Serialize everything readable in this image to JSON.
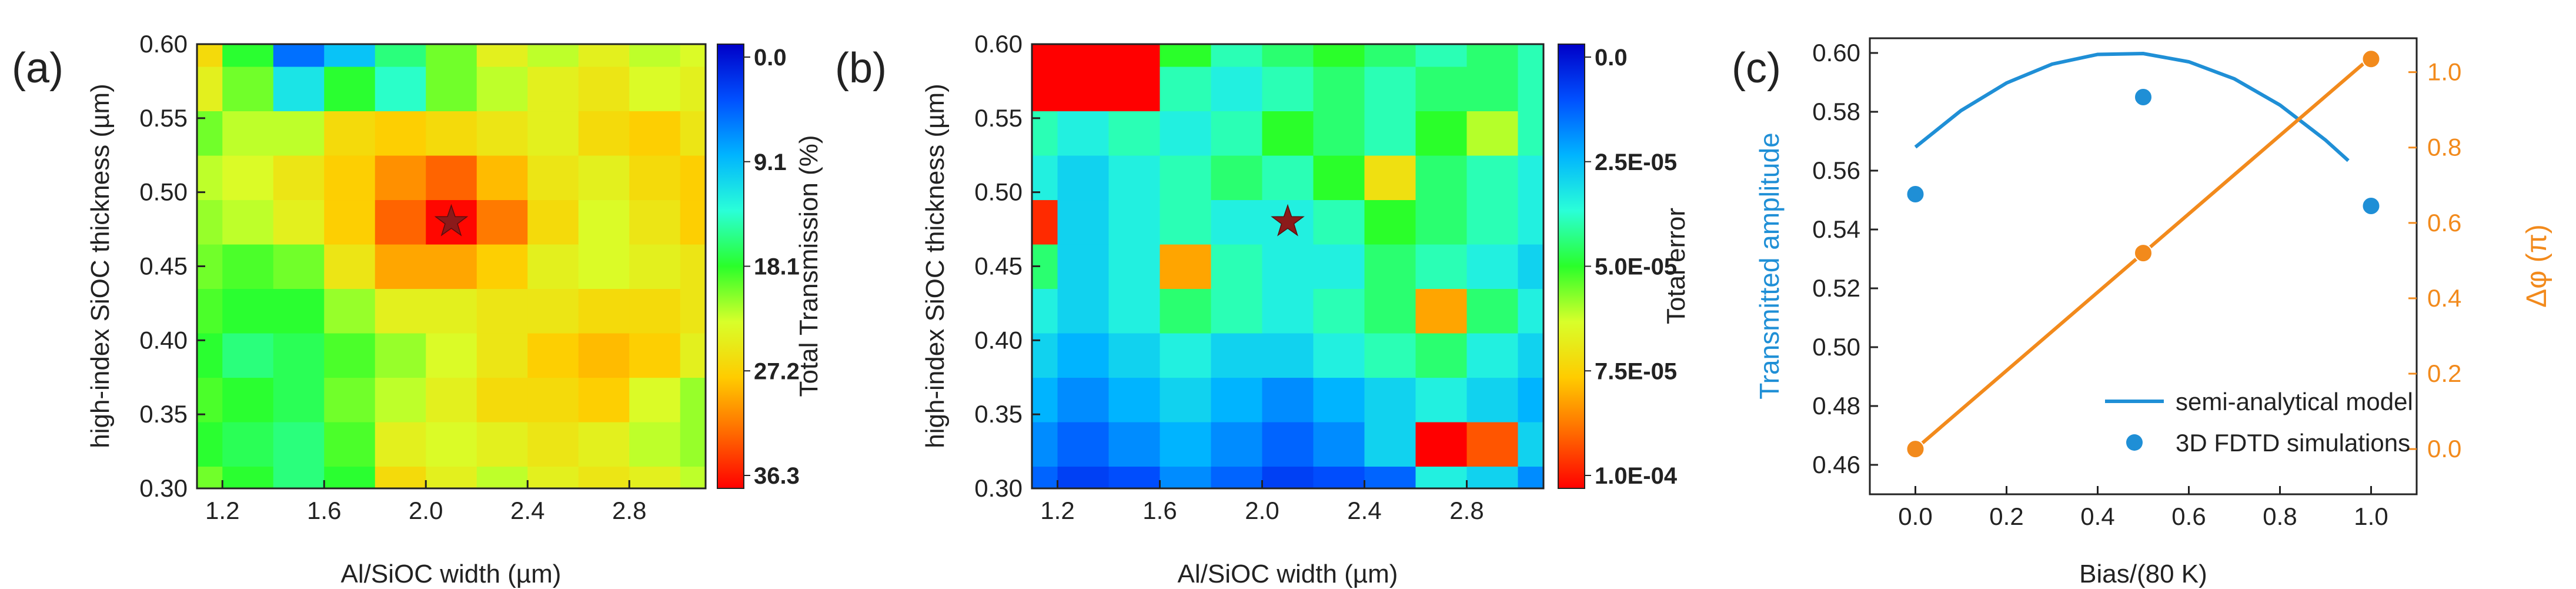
{
  "panels": {
    "a": {
      "label": "(a)"
    },
    "b": {
      "label": "(b)"
    },
    "c": {
      "label": "(c)"
    }
  },
  "chart_data": [
    {
      "id": "a",
      "type": "heatmap",
      "title": "",
      "xlabel": "Al/SiOC width (µm)",
      "ylabel": "high-index SiOC thickness (µm)",
      "xticks": [
        "1.2",
        "1.6",
        "2.0",
        "2.4",
        "2.8"
      ],
      "yticks": [
        "0.30",
        "0.35",
        "0.40",
        "0.45",
        "0.50",
        "0.55",
        "0.60"
      ],
      "xlim": [
        1.1,
        3.1
      ],
      "ylim": [
        0.3,
        0.6
      ],
      "colorbar": {
        "label": "Total Transmission (%)",
        "ticks": [
          "0.0",
          "9.1",
          "18.1",
          "27.2",
          "36.3"
        ],
        "range": [
          0.0,
          36.3
        ]
      },
      "x": [
        1.1,
        1.3,
        1.5,
        1.7,
        1.9,
        2.1,
        2.3,
        2.5,
        2.7,
        2.9,
        3.1
      ],
      "y": [
        0.3,
        0.33,
        0.36,
        0.39,
        0.42,
        0.45,
        0.48,
        0.51,
        0.54,
        0.57,
        0.6
      ],
      "z": [
        [
          20,
          18,
          16,
          18,
          26,
          24,
          22,
          24,
          25,
          24,
          22
        ],
        [
          18,
          17,
          16,
          19,
          24,
          23,
          24,
          25,
          24,
          22,
          21
        ],
        [
          19,
          18,
          17,
          20,
          22,
          24,
          26,
          26,
          27,
          23,
          21
        ],
        [
          18,
          16,
          17,
          19,
          21,
          23,
          25,
          27,
          28,
          27,
          24
        ],
        [
          19,
          18,
          18,
          21,
          24,
          24,
          25,
          25,
          26,
          26,
          25
        ],
        [
          20,
          19,
          20,
          25,
          29,
          29,
          27,
          24,
          23,
          24,
          25
        ],
        [
          21,
          22,
          24,
          27,
          32,
          36,
          31,
          26,
          23,
          25,
          27
        ],
        [
          22,
          23,
          25,
          27,
          30,
          32,
          28,
          25,
          24,
          26,
          27
        ],
        [
          20,
          22,
          22,
          26,
          27,
          26,
          25,
          24,
          26,
          27,
          25
        ],
        [
          24,
          20,
          12,
          18,
          14,
          20,
          22,
          24,
          25,
          23,
          24
        ],
        [
          26,
          18,
          6,
          10,
          16,
          20,
          24,
          22,
          24,
          22,
          23
        ]
      ],
      "annotations": [
        {
          "marker": "star",
          "x": 2.1,
          "y": 0.48,
          "color": "#8b1a1a"
        }
      ]
    },
    {
      "id": "b",
      "type": "heatmap",
      "title": "",
      "xlabel": "Al/SiOC width (µm)",
      "ylabel": "high-index SiOC thickness (µm)",
      "xticks": [
        "1.2",
        "1.6",
        "2.0",
        "2.4",
        "2.8"
      ],
      "yticks": [
        "0.30",
        "0.35",
        "0.40",
        "0.45",
        "0.50",
        "0.55",
        "0.60"
      ],
      "xlim": [
        1.1,
        3.1
      ],
      "ylim": [
        0.3,
        0.6
      ],
      "colorbar": {
        "label": "Total error",
        "ticks": [
          "0.0",
          "2.5E-05",
          "5.0E-05",
          "7.5E-05",
          "1.0E-04"
        ],
        "range": [
          0.0,
          0.0001
        ]
      },
      "x": [
        1.1,
        1.3,
        1.5,
        1.7,
        1.9,
        2.1,
        2.3,
        2.5,
        2.7,
        2.9,
        3.1
      ],
      "y": [
        0.3,
        0.33,
        0.36,
        0.39,
        0.42,
        0.45,
        0.48,
        0.51,
        0.54,
        0.57,
        0.6
      ],
      "z": [
        [
          0.15,
          0.1,
          0.12,
          0.2,
          0.15,
          0.1,
          0.12,
          0.15,
          0.35,
          0.3,
          0.2
        ],
        [
          0.2,
          0.15,
          0.2,
          0.25,
          0.2,
          0.15,
          0.2,
          0.3,
          1.0,
          0.9,
          0.3
        ],
        [
          0.25,
          0.2,
          0.25,
          0.3,
          0.25,
          0.2,
          0.25,
          0.3,
          0.35,
          0.3,
          0.25
        ],
        [
          0.3,
          0.25,
          0.3,
          0.35,
          0.3,
          0.3,
          0.35,
          0.4,
          0.45,
          0.35,
          0.3
        ],
        [
          0.35,
          0.3,
          0.35,
          0.45,
          0.4,
          0.35,
          0.4,
          0.45,
          0.8,
          0.45,
          0.35
        ],
        [
          0.45,
          0.3,
          0.35,
          0.8,
          0.4,
          0.35,
          0.35,
          0.45,
          0.4,
          0.35,
          0.3
        ],
        [
          0.95,
          0.3,
          0.35,
          0.4,
          0.35,
          0.35,
          0.4,
          0.5,
          0.45,
          0.4,
          0.35
        ],
        [
          0.35,
          0.3,
          0.35,
          0.4,
          0.45,
          0.4,
          0.5,
          0.7,
          0.45,
          0.4,
          0.35
        ],
        [
          0.4,
          0.35,
          0.4,
          0.35,
          0.4,
          0.5,
          0.45,
          0.4,
          0.5,
          0.6,
          0.4
        ],
        [
          1.0,
          1.0,
          1.0,
          0.4,
          0.35,
          0.4,
          0.45,
          0.4,
          0.45,
          0.45,
          0.4
        ],
        [
          1.0,
          1.0,
          1.0,
          0.5,
          0.4,
          0.45,
          0.5,
          0.45,
          0.4,
          0.45,
          0.4
        ]
      ],
      "annotations": [
        {
          "marker": "star",
          "x": 2.1,
          "y": 0.48,
          "color": "#8b1a1a"
        }
      ]
    },
    {
      "id": "c",
      "type": "line",
      "title": "",
      "xlabel": "Bias/(80 K)",
      "ylabel": "Transmitted amplitude",
      "y2label": "Δφ (π)",
      "xlim": [
        -0.1,
        1.1
      ],
      "ylim": [
        0.45,
        0.605
      ],
      "y2lim": [
        -0.12,
        1.09
      ],
      "xticks": [
        "0.0",
        "0.2",
        "0.4",
        "0.6",
        "0.8",
        "1.0"
      ],
      "yticks": [
        "0.46",
        "0.48",
        "0.50",
        "0.52",
        "0.54",
        "0.56",
        "0.58",
        "0.60"
      ],
      "y2ticks": [
        "0.0",
        "0.2",
        "0.4",
        "0.6",
        "0.8",
        "1.0"
      ],
      "series": [
        {
          "name": "semi-analytical model",
          "kind": "line",
          "axis": "left",
          "color": "#1f8fd6",
          "x": [
            0.0,
            0.1,
            0.2,
            0.3,
            0.4,
            0.5,
            0.6,
            0.7,
            0.8,
            0.9,
            0.95
          ],
          "y": [
            0.568,
            0.5804,
            0.5898,
            0.5962,
            0.5995,
            0.5998,
            0.597,
            0.5912,
            0.5823,
            0.5704,
            0.5634
          ]
        },
        {
          "name": "3D FDTD simulations",
          "kind": "scatter",
          "axis": "left",
          "color": "#1f8fd6",
          "x": [
            0.0,
            0.5,
            1.0
          ],
          "y": [
            0.552,
            0.585,
            0.548
          ]
        },
        {
          "name": "",
          "kind": "line",
          "axis": "right",
          "color": "#f28a1c",
          "x": [
            0.0,
            1.0
          ],
          "y": [
            0.0,
            1.04
          ]
        },
        {
          "name": "",
          "kind": "scatter",
          "axis": "right",
          "color": "#f28a1c",
          "x": [
            0.0,
            0.5,
            1.0
          ],
          "y": [
            0.0,
            0.52,
            1.035
          ]
        }
      ],
      "legend": [
        "semi-analytical model",
        "3D FDTD simulations"
      ],
      "legend_position": "bottom-right"
    }
  ],
  "colors": {
    "left_axis": "#1f8fd6",
    "right_axis": "#f28a1c",
    "star": "#8b1a1a"
  }
}
